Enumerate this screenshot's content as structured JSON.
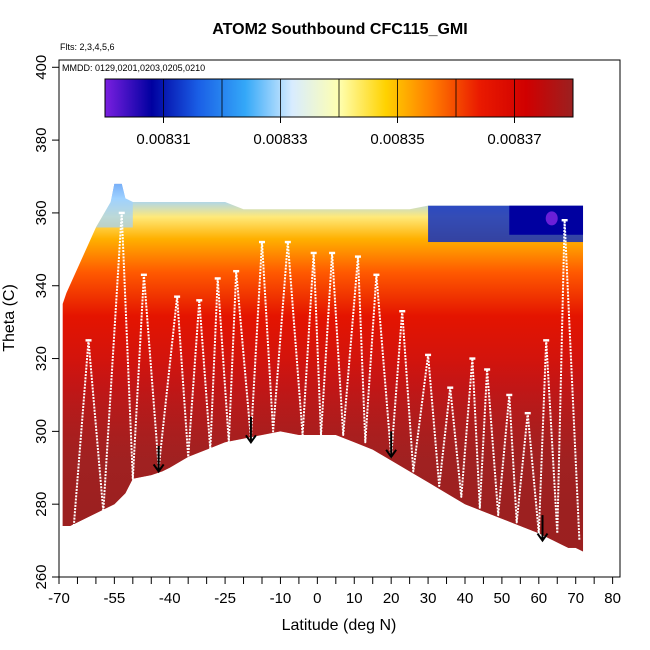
{
  "chart_data": {
    "type": "heatmap",
    "title": "ATOM2 Southbound CFC115_GMI",
    "subtitle_flights": "Flts: 2,3,4,5,6",
    "subtitle_dates": "MMDD: 0129,0201,0203,0205,0210",
    "xlabel": "Latitude (deg N)",
    "ylabel": "Theta (C)",
    "xlim": [
      -70,
      82
    ],
    "ylim": [
      260,
      402
    ],
    "x_ticks": [
      -70,
      -55,
      -40,
      -25,
      -10,
      0,
      10,
      20,
      30,
      40,
      50,
      60,
      70,
      80
    ],
    "x_tick_labels": [
      "-70",
      "-55",
      "-40",
      "-25",
      "-10",
      "0",
      "10",
      "20",
      "30",
      "40",
      "50",
      "60",
      "70",
      "80"
    ],
    "x_minor_ticks": [
      -65,
      -60,
      -50,
      -45,
      -35,
      -30,
      -20,
      -15,
      -5,
      5,
      15,
      25,
      35,
      45,
      55,
      65,
      75
    ],
    "y_ticks": [
      260,
      280,
      300,
      320,
      340,
      360,
      380,
      400
    ],
    "y_tick_labels": [
      "260",
      "280",
      "300",
      "320",
      "340",
      "360",
      "380",
      "400"
    ],
    "colorbar": {
      "vmin": 0.0083,
      "vmax": 0.00838,
      "tick_values": [
        0.00831,
        0.00833,
        0.00835,
        0.00837
      ],
      "tick_labels": [
        "0.00831",
        "0.00833",
        "0.00835",
        "0.00837"
      ],
      "stops": [
        "#7a1fe0",
        "#0000a0",
        "#1a5fe6",
        "#34a8f8",
        "#d8ecff",
        "#ffffb0",
        "#ffd200",
        "#ff7a00",
        "#ea1a00",
        "#d00000",
        "#9b2020"
      ]
    },
    "series": [
      {
        "name": "model_field_top_boundary",
        "x": [
          -69,
          -68,
          -60,
          -56,
          -55,
          -53,
          -52,
          -50,
          -45,
          -40,
          -35,
          -30,
          -25,
          -20,
          -15,
          -10,
          -5,
          0,
          5,
          10,
          15,
          20,
          25,
          30,
          35,
          40,
          45,
          50,
          55,
          60,
          62,
          64,
          66,
          68,
          70,
          72
        ],
        "y": [
          335,
          338,
          356,
          363,
          368,
          368,
          364,
          363,
          363,
          363,
          363,
          363,
          363,
          361,
          361,
          361,
          361,
          361,
          361,
          361,
          361,
          361,
          361,
          362,
          362,
          362,
          362,
          362,
          362,
          362,
          362,
          362,
          362,
          362,
          362,
          362
        ]
      },
      {
        "name": "model_field_bottom_boundary",
        "x": [
          -69,
          -67,
          -55,
          -52,
          -50,
          -45,
          -42,
          -40,
          -35,
          -30,
          -25,
          -20,
          -15,
          -10,
          -5,
          0,
          5,
          10,
          15,
          20,
          25,
          30,
          35,
          40,
          45,
          50,
          55,
          60,
          62,
          64,
          66,
          68,
          70,
          72
        ],
        "y": [
          274,
          274,
          280,
          283,
          287,
          288,
          289,
          290,
          293,
          295,
          297,
          298,
          299,
          300,
          299,
          299,
          299,
          297,
          295,
          292,
          289,
          286,
          283,
          280,
          278,
          276,
          274,
          272,
          271,
          270,
          269,
          268,
          268,
          267
        ]
      }
    ],
    "flight_profiles": {
      "name": "aircraft_track",
      "color": "#ffffff",
      "tops": [
        {
          "x": -62,
          "y": 325
        },
        {
          "x": -53,
          "y": 360
        },
        {
          "x": -47,
          "y": 343
        },
        {
          "x": -38,
          "y": 337
        },
        {
          "x": -32,
          "y": 336
        },
        {
          "x": -27,
          "y": 342
        },
        {
          "x": -22,
          "y": 344
        },
        {
          "x": -15,
          "y": 352
        },
        {
          "x": -8,
          "y": 352
        },
        {
          "x": -1,
          "y": 349
        },
        {
          "x": 4,
          "y": 349
        },
        {
          "x": 11,
          "y": 348
        },
        {
          "x": 16,
          "y": 343
        },
        {
          "x": 23,
          "y": 333
        },
        {
          "x": 30,
          "y": 321
        },
        {
          "x": 36,
          "y": 312
        },
        {
          "x": 42,
          "y": 320
        },
        {
          "x": 46,
          "y": 317
        },
        {
          "x": 52,
          "y": 310
        },
        {
          "x": 57,
          "y": 305
        },
        {
          "x": 62,
          "y": 325
        },
        {
          "x": 67,
          "y": 358
        }
      ],
      "bottoms": [
        {
          "x": -66,
          "y": 274
        },
        {
          "x": -58,
          "y": 278
        },
        {
          "x": -50,
          "y": 287
        },
        {
          "x": -43,
          "y": 290
        },
        {
          "x": -35,
          "y": 293
        },
        {
          "x": -29,
          "y": 295
        },
        {
          "x": -24,
          "y": 297
        },
        {
          "x": -18,
          "y": 298
        },
        {
          "x": -12,
          "y": 300
        },
        {
          "x": -4,
          "y": 299
        },
        {
          "x": 1,
          "y": 299
        },
        {
          "x": 7,
          "y": 299
        },
        {
          "x": 13,
          "y": 297
        },
        {
          "x": 20,
          "y": 293
        },
        {
          "x": 26,
          "y": 289
        },
        {
          "x": 33,
          "y": 285
        },
        {
          "x": 39,
          "y": 282
        },
        {
          "x": 44,
          "y": 279
        },
        {
          "x": 49,
          "y": 277
        },
        {
          "x": 54,
          "y": 275
        },
        {
          "x": 60,
          "y": 272
        },
        {
          "x": 65,
          "y": 272
        },
        {
          "x": 71,
          "y": 270
        }
      ]
    },
    "annotations": [
      {
        "type": "arrow",
        "x": -43,
        "y_start": 296,
        "y_end": 289
      },
      {
        "type": "arrow",
        "x": -18,
        "y_start": 304,
        "y_end": 297
      },
      {
        "type": "arrow",
        "x": 20,
        "y_start": 300,
        "y_end": 293
      },
      {
        "type": "arrow",
        "x": 61,
        "y_start": 277,
        "y_end": 270
      }
    ]
  }
}
